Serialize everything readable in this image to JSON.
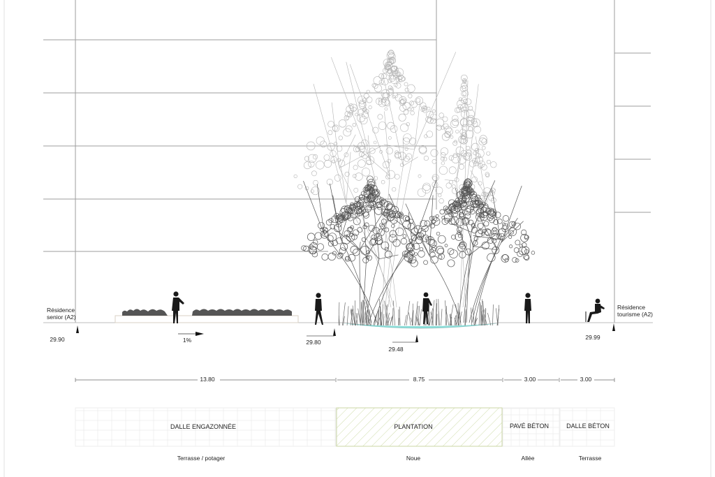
{
  "buildings": {
    "left_label": [
      "Résidence",
      "senior (A2)"
    ],
    "right_label": [
      "Résidence",
      "tourisme (A2)"
    ]
  },
  "levels": {
    "left": "29.90",
    "lawn_end": "29.80",
    "swale": "29.48",
    "right": "29.99"
  },
  "slope": "1%",
  "dimensions": [
    "13.80",
    "8.75",
    "3.00",
    "3.00"
  ],
  "zones": [
    {
      "material": "DALLE ENGAZONNÉE",
      "use": "Terrasse / potager"
    },
    {
      "material": "PLANTATION",
      "use": "Noue"
    },
    {
      "material": "PAVÉ BÉTON",
      "use": "Allée"
    },
    {
      "material": "DALLE BÉTON",
      "use": "Terrasse"
    }
  ],
  "colors": {
    "line": "#9a9a9a",
    "ink": "#1a1a1a",
    "water": "#6fd6cf",
    "hatch": "#c8d9a0"
  }
}
